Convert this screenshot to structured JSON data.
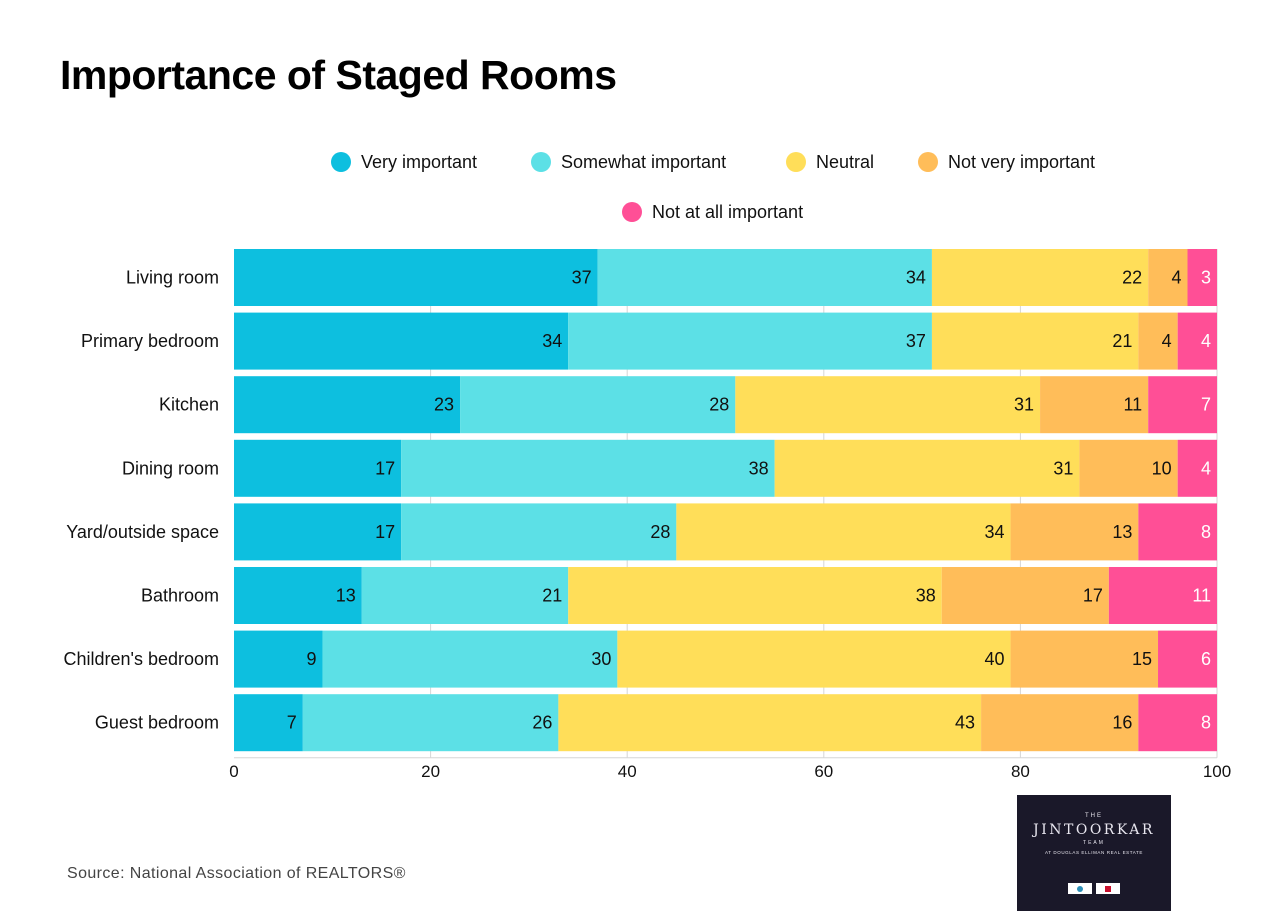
{
  "chart_data": {
    "type": "bar",
    "orientation": "horizontal",
    "stacked": true,
    "title": "Importance of Staged Rooms",
    "categories": [
      "Living room",
      "Primary bedroom",
      "Kitchen",
      "Dining room",
      "Yard/outside space",
      "Bathroom",
      "Children's bedroom",
      "Guest bedroom"
    ],
    "series": [
      {
        "name": "Very important",
        "color": "#0dbfdf",
        "values": [
          37,
          34,
          23,
          17,
          17,
          13,
          9,
          7
        ]
      },
      {
        "name": "Somewhat important",
        "color": "#5ce0e6",
        "values": [
          34,
          37,
          28,
          38,
          28,
          21,
          30,
          26
        ]
      },
      {
        "name": "Neutral",
        "color": "#ffde59",
        "values": [
          22,
          21,
          31,
          31,
          34,
          38,
          40,
          43
        ]
      },
      {
        "name": "Not very important",
        "color": "#ffbd59",
        "values": [
          4,
          4,
          11,
          10,
          13,
          17,
          15,
          16
        ]
      },
      {
        "name": "Not at all important",
        "color": "#ff4f96",
        "values": [
          3,
          4,
          7,
          4,
          8,
          11,
          6,
          8
        ]
      }
    ],
    "xlim": [
      0,
      100
    ],
    "xticks": [
      0,
      20,
      40,
      60,
      80,
      100
    ],
    "grid": true,
    "legend_position": "top",
    "data_label_position": "inside-end"
  },
  "source": "Source: National Association of REALTORS®",
  "logo": {
    "top": "THE",
    "name": "JINTOORKAR",
    "team": "TEAM",
    "sub": "AT DOUGLAS ELLIMAN REAL ESTATE"
  }
}
